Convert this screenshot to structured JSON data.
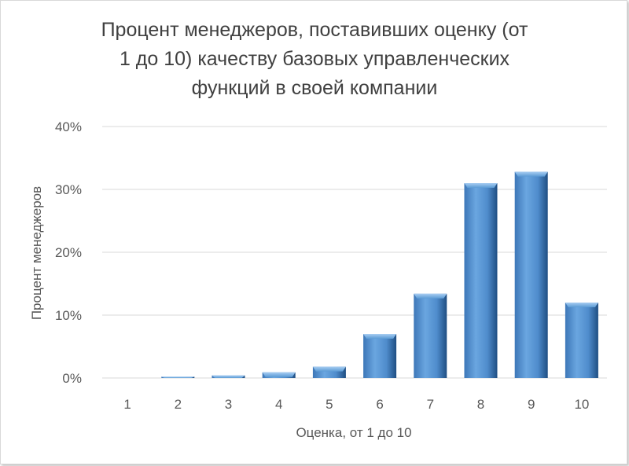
{
  "chart_data": {
    "type": "bar",
    "title_lines": [
      "Процент менеджеров, поставивших оценку (от",
      "1 до 10) качеству базовых управленческих",
      "функций в своей компании"
    ],
    "xlabel": "Оценка, от 1 до 10",
    "ylabel": "Процент менеджеров",
    "categories": [
      "1",
      "2",
      "3",
      "4",
      "5",
      "6",
      "7",
      "8",
      "9",
      "10"
    ],
    "values": [
      0,
      0.2,
      0.4,
      0.9,
      1.8,
      7.0,
      13.4,
      31.0,
      32.8,
      12.0
    ],
    "ylim": [
      0,
      40
    ],
    "yticks": [
      0,
      10,
      20,
      30,
      40
    ],
    "ytick_labels": [
      "0%",
      "10%",
      "20%",
      "30%",
      "40%"
    ],
    "grid": true,
    "bar_color": "#5b9bd5"
  }
}
